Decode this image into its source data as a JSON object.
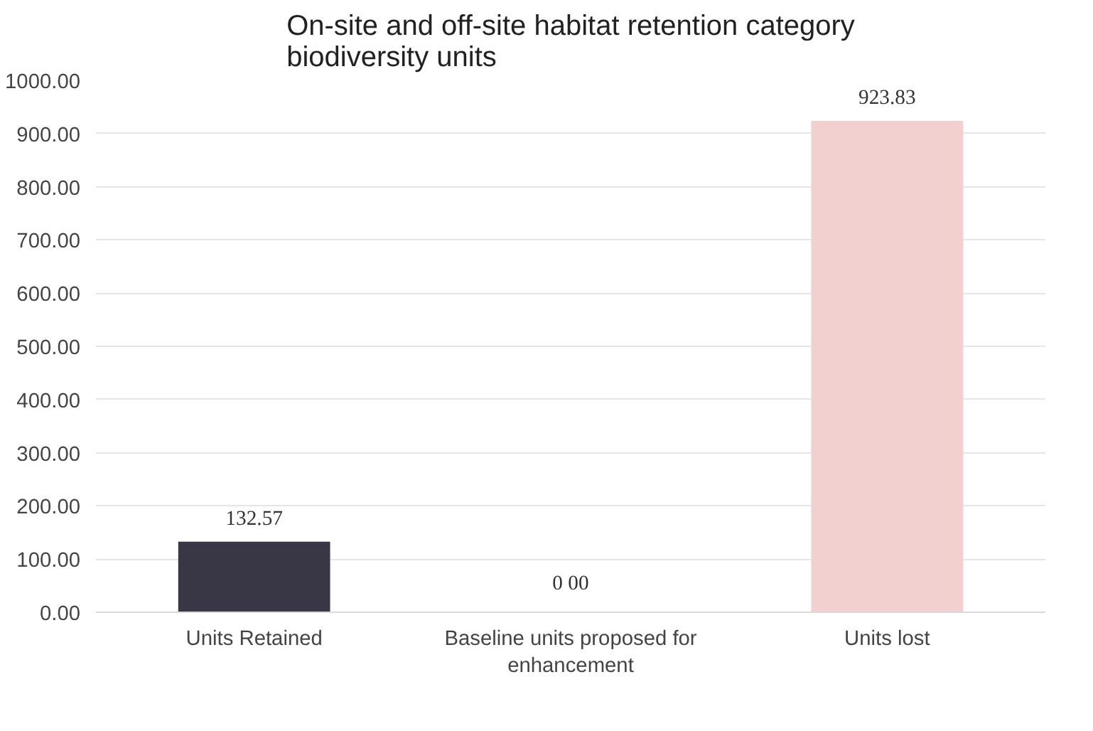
{
  "chart_data": {
    "type": "bar",
    "title": "On-site and off-site habitat retention category biodiversity units",
    "categories": [
      "Units Retained",
      "Baseline units proposed for enhancement",
      "Units lost"
    ],
    "values": [
      132.57,
      0.0,
      923.83
    ],
    "colors": [
      "#393645",
      "#f2d0d0",
      "#f2d0d0"
    ],
    "value_labels": [
      "132.57",
      "0 00",
      "923.83"
    ],
    "ylim": [
      0,
      1000
    ],
    "yticks": [
      {
        "value": 0,
        "label": "0.00"
      },
      {
        "value": 100,
        "label": "100.00"
      },
      {
        "value": 200,
        "label": "200.00"
      },
      {
        "value": 300,
        "label": "300.00"
      },
      {
        "value": 400,
        "label": "400.00"
      },
      {
        "value": 500,
        "label": "500.00"
      },
      {
        "value": 600,
        "label": "600.00"
      },
      {
        "value": 700,
        "label": "700.00"
      },
      {
        "value": 800,
        "label": "800.00"
      },
      {
        "value": 900,
        "label": "900.00"
      },
      {
        "value": 1000,
        "label": "1000.00"
      }
    ],
    "grid": "y"
  }
}
